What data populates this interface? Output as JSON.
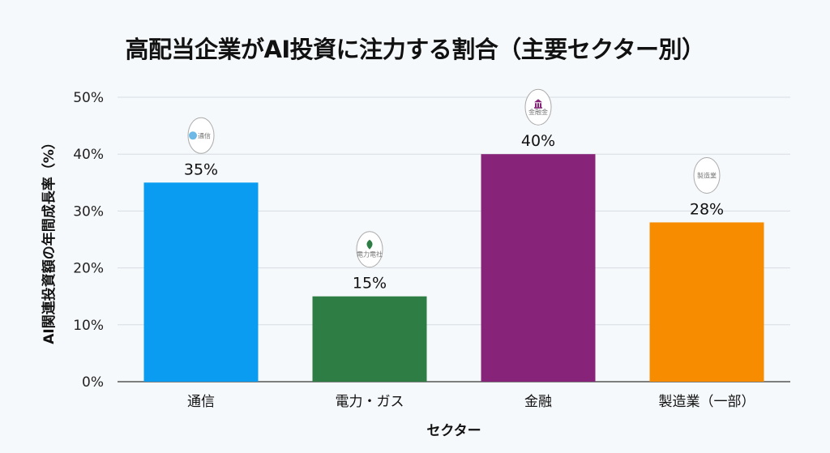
{
  "chart_data": {
    "type": "bar",
    "title": "高配当企業がAI投資に注力する割合（主要セクター別）",
    "xlabel": "セクター",
    "ylabel": "AI関連投資額の年間成長率（%）",
    "ylim": [
      0,
      50
    ],
    "yticks": [
      0,
      10,
      20,
      30,
      40,
      50
    ],
    "ytick_labels": [
      "0%",
      "10%",
      "20%",
      "30%",
      "40%",
      "50%"
    ],
    "grid": true,
    "categories": [
      "通信",
      "電力・ガス",
      "金融",
      "製造業（一部）"
    ],
    "values": [
      35,
      15,
      40,
      28
    ],
    "value_labels": [
      "35%",
      "15%",
      "40%",
      "28%"
    ],
    "colors": [
      "#0a9cf0",
      "#2e7d44",
      "#88237a",
      "#f78c00"
    ],
    "badges": [
      {
        "icon": "circle-icon",
        "label": "通信",
        "color": "#6cb9e8"
      },
      {
        "icon": "leaf-icon",
        "label": "電力電社",
        "color": "#2e7d44"
      },
      {
        "icon": "bank-icon",
        "label": "金融金",
        "color": "#88237a"
      },
      {
        "icon": "",
        "label": "製造業",
        "color": "#999999"
      }
    ]
  }
}
